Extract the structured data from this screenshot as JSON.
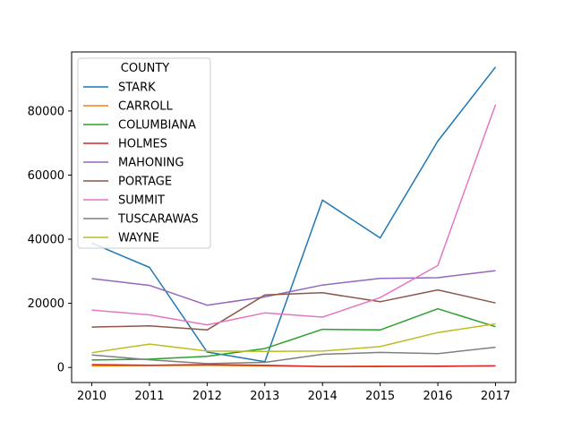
{
  "chart_data": {
    "type": "line",
    "title": "",
    "xlabel": "",
    "ylabel": "",
    "x": [
      2010,
      2011,
      2012,
      2013,
      2014,
      2015,
      2016,
      2017
    ],
    "xlim": [
      2009.65,
      2017.35
    ],
    "ylim": [
      -4700,
      98400
    ],
    "yticks": [
      0,
      20000,
      40000,
      60000,
      80000
    ],
    "grid": false,
    "legend": {
      "title": "COUNTY",
      "placement": "upper-left"
    },
    "series": [
      {
        "name": "STARK",
        "color": "#1f77b4",
        "values": [
          38800,
          31200,
          4800,
          1800,
          52200,
          40400,
          70600,
          93700
        ]
      },
      {
        "name": "CARROLL",
        "color": "#ff7f0e",
        "values": [
          500,
          600,
          700,
          500,
          300,
          400,
          300,
          500
        ]
      },
      {
        "name": "COLUMBIANA",
        "color": "#2ca02c",
        "values": [
          2300,
          2600,
          3500,
          5900,
          11900,
          11700,
          18300,
          12700
        ]
      },
      {
        "name": "HOLMES",
        "color": "#d62728",
        "values": [
          900,
          700,
          900,
          700,
          300,
          300,
          400,
          500
        ]
      },
      {
        "name": "MAHONING",
        "color": "#9467bd",
        "values": [
          27700,
          25600,
          19400,
          22000,
          25700,
          27800,
          28000,
          30200
        ]
      },
      {
        "name": "PORTAGE",
        "color": "#8c564b",
        "values": [
          12600,
          13000,
          11700,
          22600,
          23300,
          20500,
          24200,
          20100
        ]
      },
      {
        "name": "SUMMIT",
        "color": "#e377c2",
        "values": [
          17900,
          16400,
          13300,
          17000,
          15700,
          21800,
          31800,
          82000
        ]
      },
      {
        "name": "TUSCARAWAS",
        "color": "#7f7f7f",
        "values": [
          3900,
          2400,
          1200,
          1600,
          4100,
          4700,
          4300,
          6300
        ]
      },
      {
        "name": "WAYNE",
        "color": "#bcbd22",
        "values": [
          4600,
          7300,
          5100,
          5000,
          5100,
          6500,
          10900,
          13600
        ]
      }
    ]
  }
}
